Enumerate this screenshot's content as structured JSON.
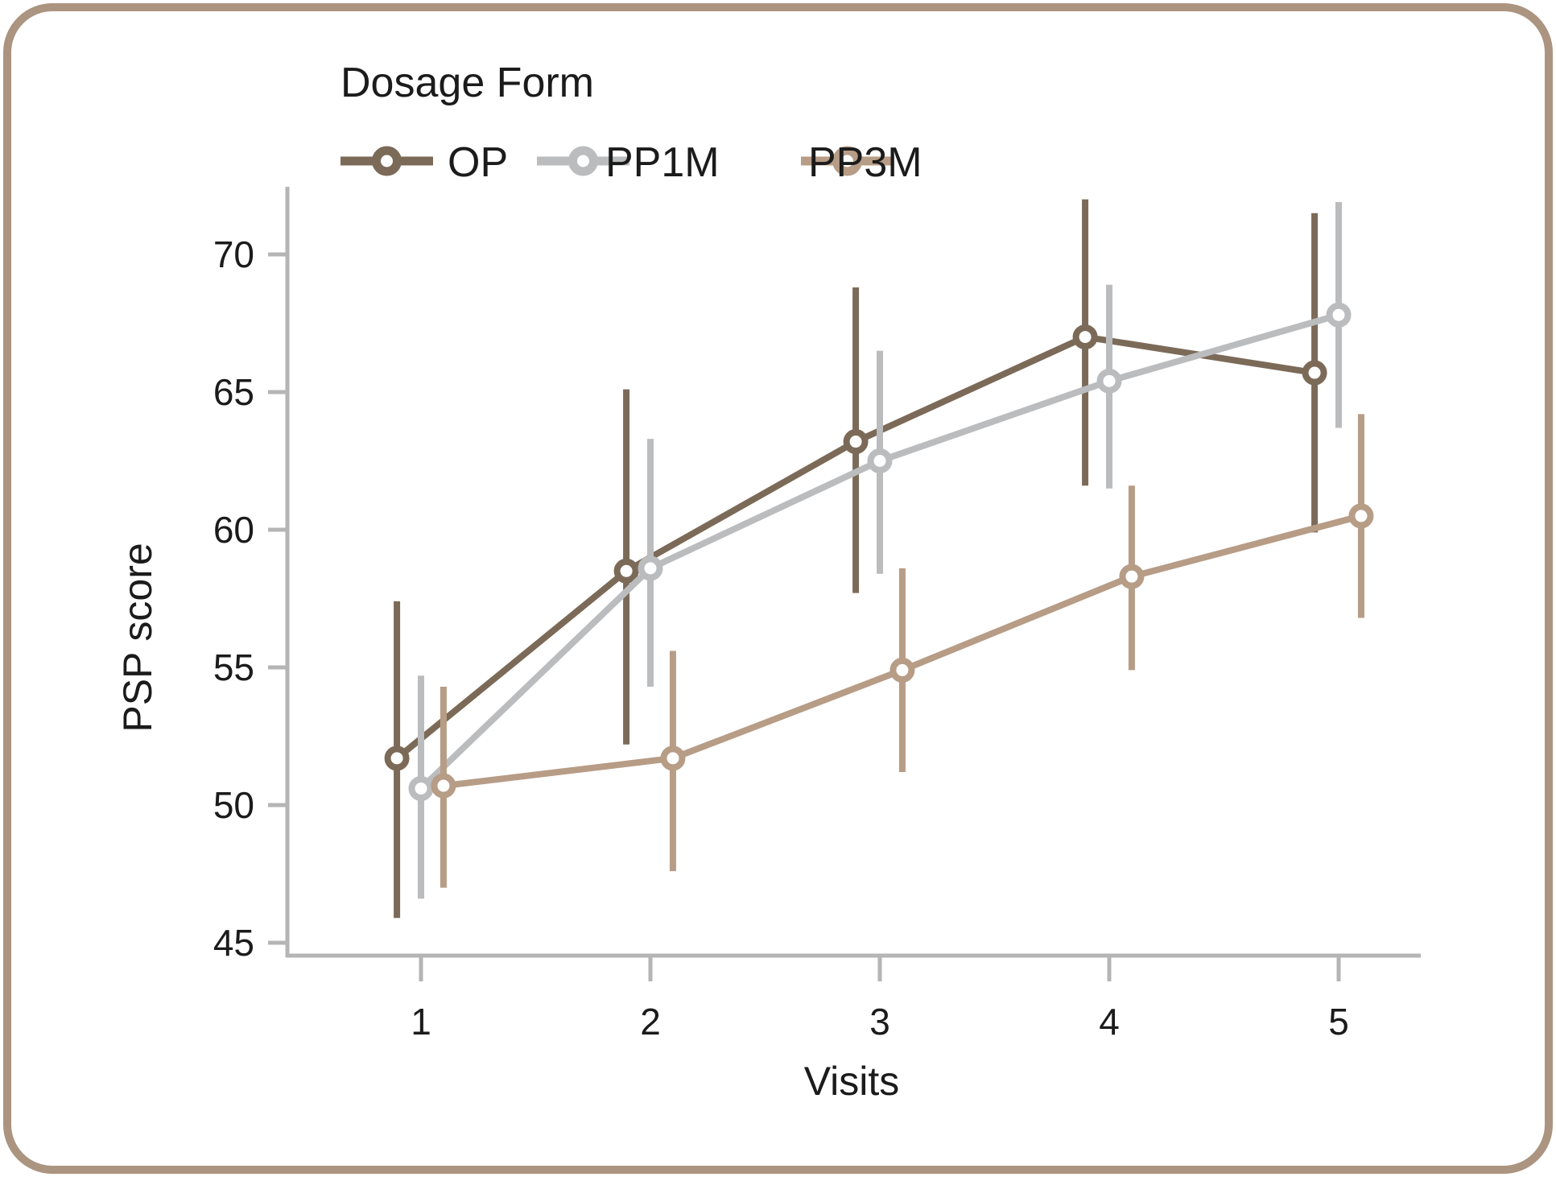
{
  "figure": {
    "border_color": "#ab9480",
    "background_color": "#ffffff",
    "axis_color": "#b5b5b5",
    "text_color": "#1b1b1b"
  },
  "legend": {
    "title": "Dosage Form"
  },
  "chart_data": {
    "type": "line",
    "title": "",
    "xlabel": "Visits",
    "ylabel": "PSP score",
    "x": [
      1,
      2,
      3,
      4,
      5
    ],
    "x_tick_labels": [
      "1",
      "2",
      "3",
      "4",
      "5"
    ],
    "yticks": [
      45,
      50,
      55,
      60,
      65,
      70
    ],
    "ylim": [
      44.5,
      73
    ],
    "xlim": [
      0.42,
      5.36
    ],
    "grid": false,
    "error_bars": true,
    "legend_position": "top-left",
    "series": [
      {
        "name": "OP",
        "color": "#7c6a58",
        "x_offset": -0.105,
        "values": [
          51.7,
          58.5,
          63.2,
          67.0,
          65.7
        ],
        "lower": [
          45.9,
          52.2,
          57.7,
          61.6,
          59.9
        ],
        "upper": [
          57.4,
          65.1,
          68.8,
          72.0,
          71.5
        ]
      },
      {
        "name": "PP1M",
        "color": "#babcbe",
        "x_offset": 0.0,
        "values": [
          50.6,
          58.6,
          62.5,
          65.4,
          67.8
        ],
        "lower": [
          46.6,
          54.3,
          58.4,
          61.5,
          63.7
        ],
        "upper": [
          54.7,
          63.3,
          66.5,
          68.9,
          71.9
        ]
      },
      {
        "name": "PP3M",
        "color": "#b79c86",
        "x_offset": 0.098,
        "values": [
          50.7,
          51.7,
          54.9,
          58.3,
          60.5
        ],
        "lower": [
          47.0,
          47.6,
          51.2,
          54.9,
          56.8
        ],
        "upper": [
          54.3,
          55.6,
          58.6,
          61.6,
          64.2
        ]
      }
    ]
  }
}
